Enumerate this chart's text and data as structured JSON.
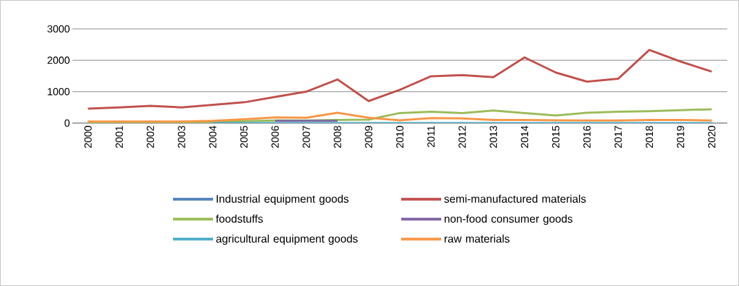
{
  "chart_data": {
    "type": "line",
    "categories": [
      "2000",
      "2001",
      "2002",
      "2003",
      "2004",
      "2005",
      "2006",
      "2007",
      "2008",
      "2009",
      "2010",
      "2011",
      "2012",
      "2013",
      "2014",
      "2015",
      "2016",
      "2017",
      "2018",
      "2019",
      "2020"
    ],
    "series": [
      {
        "name": "Industrial equipment goods",
        "color": "#4f81bd",
        "values": [
          null,
          null,
          null,
          null,
          null,
          null,
          null,
          null,
          null,
          null,
          null,
          null,
          null,
          null,
          null,
          null,
          null,
          null,
          null,
          null,
          null
        ]
      },
      {
        "name": "semi-manufactured materials",
        "color": "#c0504d",
        "values": [
          460,
          500,
          550,
          500,
          580,
          660,
          830,
          1000,
          1390,
          700,
          1060,
          1490,
          1530,
          1460,
          2090,
          1610,
          1320,
          1410,
          2330,
          1960,
          1640
        ]
      },
      {
        "name": "foodstuffs",
        "color": "#9bbb59",
        "values": [
          30,
          30,
          30,
          30,
          40,
          60,
          80,
          80,
          100,
          110,
          320,
          360,
          320,
          400,
          320,
          240,
          330,
          360,
          380,
          410,
          440
        ]
      },
      {
        "name": "non-food consumer goods",
        "color": "#8064a2",
        "values": [
          null,
          null,
          null,
          null,
          null,
          null,
          70,
          70,
          70,
          null,
          null,
          null,
          null,
          null,
          null,
          null,
          null,
          null,
          null,
          null,
          null
        ]
      },
      {
        "name": "agricultural equipment goods",
        "color": "#4bacc6",
        "values": [
          null,
          null,
          null,
          null,
          0,
          0,
          0,
          0,
          0,
          0,
          0,
          0,
          0,
          0,
          0,
          0,
          0,
          0,
          0,
          0,
          0
        ]
      },
      {
        "name": "raw materials",
        "color": "#f79646",
        "values": [
          50,
          50,
          50,
          50,
          70,
          120,
          180,
          170,
          330,
          170,
          90,
          160,
          150,
          100,
          100,
          90,
          80,
          80,
          100,
          100,
          80
        ]
      }
    ],
    "ylim": [
      0,
      3000
    ],
    "yticks": [
      0,
      1000,
      2000,
      3000
    ],
    "grid": "y",
    "legend": "bottom",
    "marker": "none",
    "line_style": "solid"
  }
}
